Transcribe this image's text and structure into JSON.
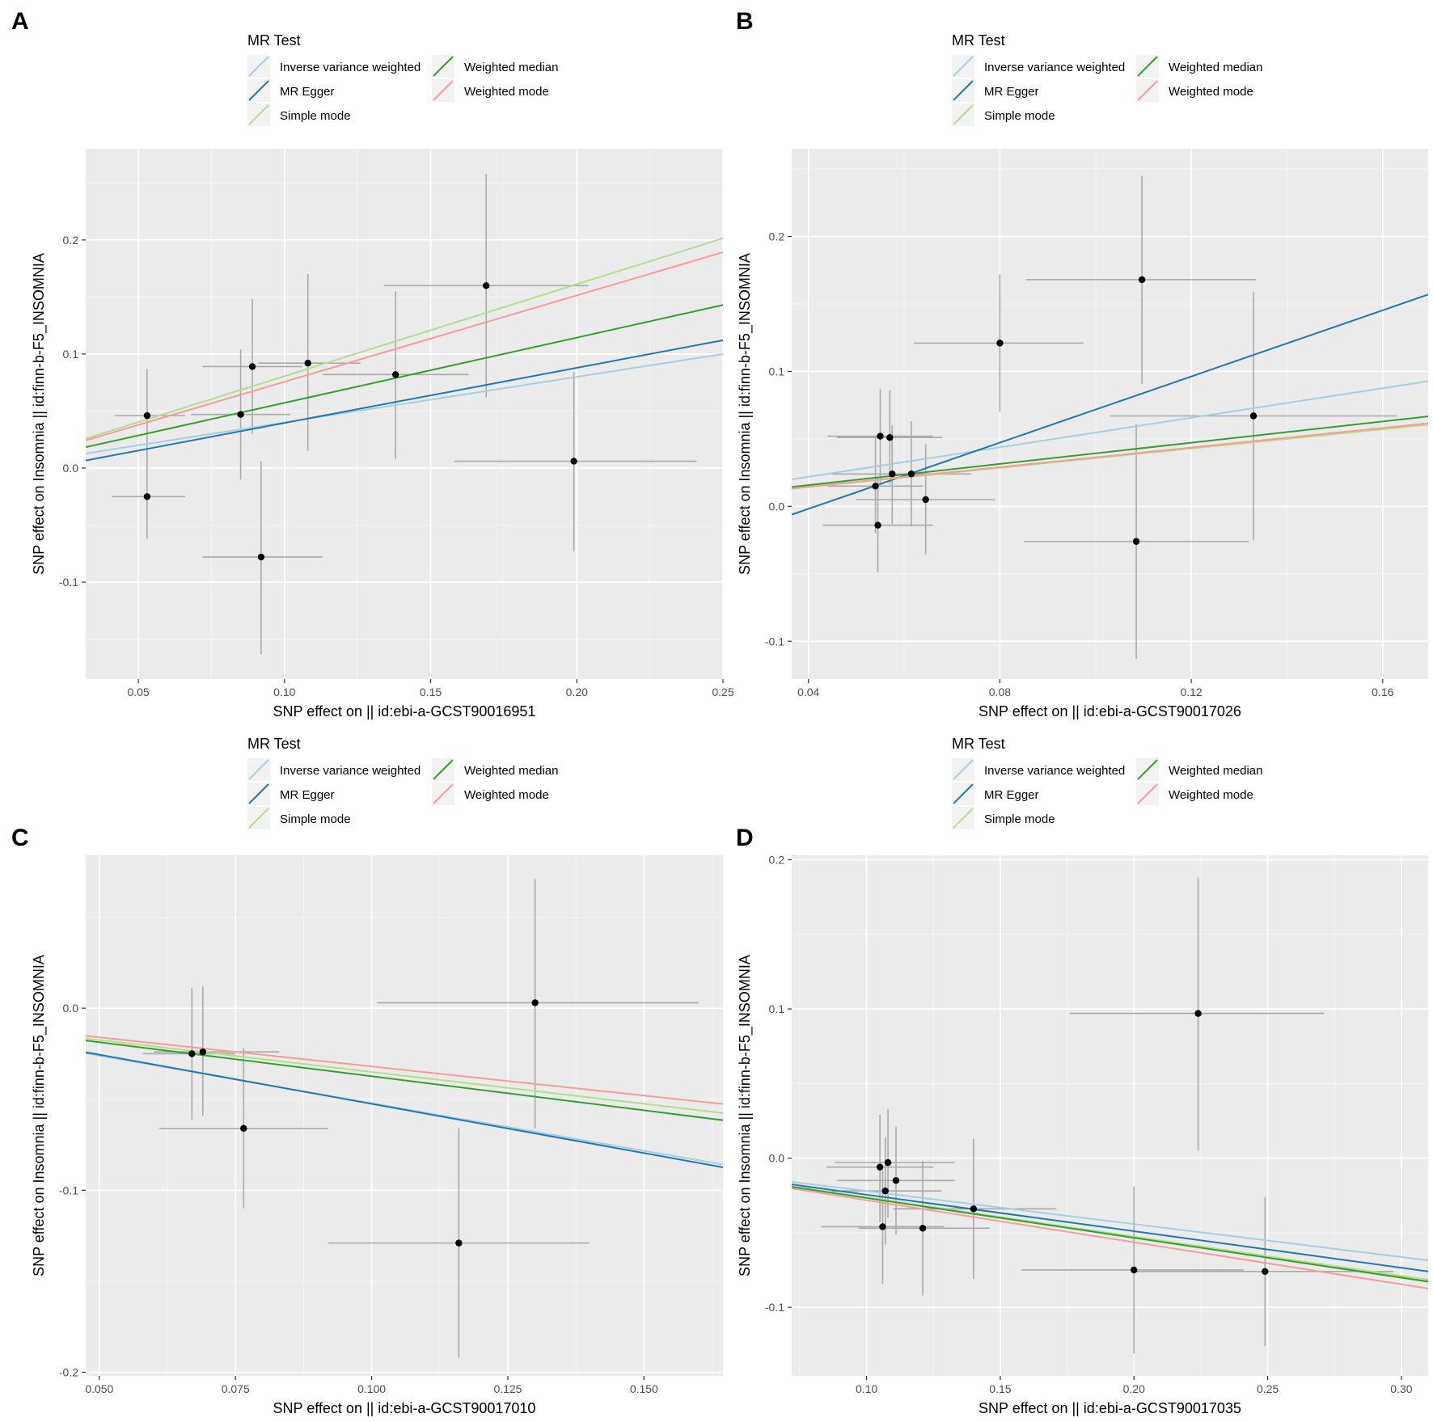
{
  "legend": {
    "title": "MR Test",
    "items": [
      {
        "label": "Inverse variance weighted",
        "color": "#a6cee3"
      },
      {
        "label": "MR Egger",
        "color": "#1f78b4"
      },
      {
        "label": "Simple mode",
        "color": "#b2df8a"
      },
      {
        "label": "Weighted median",
        "color": "#33a02c"
      },
      {
        "label": "Weighted mode",
        "color": "#fb9a99"
      }
    ]
  },
  "colors": {
    "panel_background": "#ebebeb",
    "grid_major": "#ffffff",
    "grid_minor": "#f4f4f4",
    "point": "#000000",
    "errorbar": "#aaaaaa",
    "axis_text": "#4d4d4d",
    "axis_title": "#000000"
  },
  "chart_data": [
    {
      "type": "scatter",
      "panel_label": "A",
      "title": "",
      "xlabel": "SNP effect on  || id:ebi-a-GCST90016951",
      "ylabel": "SNP effect on Insomnia || id:finn-b-F5_INSOMNIA",
      "xlim": [
        0.032,
        0.25
      ],
      "ylim": [
        -0.185,
        0.28
      ],
      "xticks": [
        0.05,
        0.1,
        0.15,
        0.2,
        0.25
      ],
      "xtick_labels": [
        "0.05",
        "0.10",
        "0.15",
        "0.20",
        "0.25"
      ],
      "yticks": [
        -0.1,
        0.0,
        0.1,
        0.2
      ],
      "ytick_labels": [
        "-0.1",
        "0.0",
        "0.1",
        "0.2"
      ],
      "points": [
        {
          "x": 0.053,
          "y": 0.046,
          "xlo": 0.042,
          "xhi": 0.066,
          "ylo": 0.006,
          "yhi": 0.087
        },
        {
          "x": 0.053,
          "y": -0.025,
          "xlo": 0.041,
          "xhi": 0.066,
          "ylo": -0.062,
          "yhi": 0.013
        },
        {
          "x": 0.085,
          "y": 0.047,
          "xlo": 0.068,
          "xhi": 0.102,
          "ylo": -0.01,
          "yhi": 0.104
        },
        {
          "x": 0.089,
          "y": 0.089,
          "xlo": 0.072,
          "xhi": 0.106,
          "ylo": 0.03,
          "yhi": 0.148
        },
        {
          "x": 0.092,
          "y": -0.078,
          "xlo": 0.072,
          "xhi": 0.113,
          "ylo": -0.163,
          "yhi": 0.006
        },
        {
          "x": 0.108,
          "y": 0.092,
          "xlo": 0.091,
          "xhi": 0.126,
          "ylo": 0.015,
          "yhi": 0.17
        },
        {
          "x": 0.138,
          "y": 0.082,
          "xlo": 0.113,
          "xhi": 0.163,
          "ylo": 0.008,
          "yhi": 0.155
        },
        {
          "x": 0.169,
          "y": 0.16,
          "xlo": 0.134,
          "xhi": 0.204,
          "ylo": 0.062,
          "yhi": 0.258
        },
        {
          "x": 0.199,
          "y": 0.006,
          "xlo": 0.158,
          "xhi": 0.241,
          "ylo": -0.073,
          "yhi": 0.084
        }
      ],
      "series": [
        {
          "name": "Inverse variance weighted",
          "intercept": 0.0,
          "slope": 0.4
        },
        {
          "name": "MR Egger",
          "intercept": -0.0088,
          "slope": 0.4836
        },
        {
          "name": "Simple mode",
          "intercept": 0.0,
          "slope": 0.806
        },
        {
          "name": "Weighted median",
          "intercept": 0.0,
          "slope": 0.572
        },
        {
          "name": "Weighted mode",
          "intercept": 0.0,
          "slope": 0.757
        }
      ]
    },
    {
      "type": "scatter",
      "panel_label": "B",
      "title": "",
      "xlabel": "SNP effect on  || id:ebi-a-GCST90017026",
      "ylabel": "SNP effect on Insomnia || id:finn-b-F5_INSOMNIA",
      "xlim": [
        0.0365,
        0.1695
      ],
      "ylim": [
        -0.128,
        0.265
      ],
      "xticks": [
        0.04,
        0.08,
        0.12,
        0.16
      ],
      "xtick_labels": [
        "0.04",
        "0.08",
        "0.12",
        "0.16"
      ],
      "yticks": [
        -0.1,
        0.0,
        0.1,
        0.2
      ],
      "ytick_labels": [
        "-0.1",
        "0.0",
        "0.1",
        "0.2"
      ],
      "points": [
        {
          "x": 0.054,
          "y": 0.015,
          "xlo": 0.044,
          "xhi": 0.064,
          "ylo": -0.02,
          "yhi": 0.052
        },
        {
          "x": 0.0545,
          "y": -0.014,
          "xlo": 0.043,
          "xhi": 0.066,
          "ylo": -0.049,
          "yhi": 0.021
        },
        {
          "x": 0.055,
          "y": 0.052,
          "xlo": 0.044,
          "xhi": 0.066,
          "ylo": 0.017,
          "yhi": 0.087
        },
        {
          "x": 0.057,
          "y": 0.051,
          "xlo": 0.046,
          "xhi": 0.068,
          "ylo": 0.016,
          "yhi": 0.086
        },
        {
          "x": 0.0575,
          "y": 0.024,
          "xlo": 0.045,
          "xhi": 0.07,
          "ylo": -0.013,
          "yhi": 0.06
        },
        {
          "x": 0.0615,
          "y": 0.024,
          "xlo": 0.049,
          "xhi": 0.074,
          "ylo": -0.015,
          "yhi": 0.063
        },
        {
          "x": 0.0645,
          "y": 0.005,
          "xlo": 0.05,
          "xhi": 0.079,
          "ylo": -0.036,
          "yhi": 0.046
        },
        {
          "x": 0.08,
          "y": 0.121,
          "xlo": 0.062,
          "xhi": 0.0975,
          "ylo": 0.07,
          "yhi": 0.172
        },
        {
          "x": 0.1085,
          "y": -0.026,
          "xlo": 0.085,
          "xhi": 0.132,
          "ylo": -0.113,
          "yhi": 0.061
        },
        {
          "x": 0.1097,
          "y": 0.168,
          "xlo": 0.0855,
          "xhi": 0.1335,
          "ylo": 0.091,
          "yhi": 0.245
        },
        {
          "x": 0.133,
          "y": 0.067,
          "xlo": 0.103,
          "xhi": 0.163,
          "ylo": -0.025,
          "yhi": 0.159
        }
      ],
      "series": [
        {
          "name": "Inverse variance weighted",
          "intercept": 0.0,
          "slope": 0.547
        },
        {
          "name": "MR Egger",
          "intercept": -0.0509,
          "slope": 1.2262
        },
        {
          "name": "Simple mode",
          "intercept": 0.0,
          "slope": 0.357
        },
        {
          "name": "Weighted median",
          "intercept": 0.0,
          "slope": 0.393
        },
        {
          "name": "Weighted mode",
          "intercept": 0.0,
          "slope": 0.363
        }
      ]
    },
    {
      "type": "scatter",
      "panel_label": "C",
      "title": "",
      "xlabel": "SNP effect on  || id:ebi-a-GCST90017010",
      "ylabel": "SNP effect on Insomnia || id:finn-b-F5_INSOMNIA",
      "xlim": [
        0.0475,
        0.1645
      ],
      "ylim": [
        -0.202,
        0.084
      ],
      "xticks": [
        0.05,
        0.075,
        0.1,
        0.125,
        0.15
      ],
      "xtick_labels": [
        "0.050",
        "0.075",
        "0.100",
        "0.125",
        "0.150"
      ],
      "yticks": [
        -0.2,
        -0.1,
        0.0
      ],
      "ytick_labels": [
        "-0.2",
        "-0.1",
        "0.0"
      ],
      "points": [
        {
          "x": 0.067,
          "y": -0.025,
          "xlo": 0.058,
          "xhi": 0.075,
          "ylo": -0.061,
          "yhi": 0.011
        },
        {
          "x": 0.069,
          "y": -0.024,
          "xlo": 0.06,
          "xhi": 0.083,
          "ylo": -0.059,
          "yhi": 0.012
        },
        {
          "x": 0.0765,
          "y": -0.066,
          "xlo": 0.061,
          "xhi": 0.092,
          "ylo": -0.11,
          "yhi": -0.022
        },
        {
          "x": 0.116,
          "y": -0.129,
          "xlo": 0.092,
          "xhi": 0.14,
          "ylo": -0.192,
          "yhi": -0.066
        },
        {
          "x": 0.13,
          "y": 0.003,
          "xlo": 0.101,
          "xhi": 0.16,
          "ylo": -0.066,
          "yhi": 0.071
        }
      ],
      "series": [
        {
          "name": "Inverse variance weighted",
          "intercept": 0.0,
          "slope": -0.522
        },
        {
          "name": "MR Egger",
          "intercept": 0.0015,
          "slope": -0.5405
        },
        {
          "name": "Simple mode",
          "intercept": 0.0,
          "slope": -0.35
        },
        {
          "name": "Weighted median",
          "intercept": 0.0,
          "slope": -0.374
        },
        {
          "name": "Weighted mode",
          "intercept": 0.0,
          "slope": -0.32
        }
      ]
    },
    {
      "type": "scatter",
      "panel_label": "D",
      "title": "",
      "xlabel": "SNP effect on  || id:ebi-a-GCST90017035",
      "ylabel": "SNP effect on Insomnia || id:finn-b-F5_INSOMNIA",
      "xlim": [
        0.072,
        0.31
      ],
      "ylim": [
        -0.146,
        0.203
      ],
      "xticks": [
        0.1,
        0.15,
        0.2,
        0.25,
        0.3
      ],
      "xtick_labels": [
        "0.10",
        "0.15",
        "0.20",
        "0.25",
        "0.30"
      ],
      "yticks": [
        -0.1,
        0.0,
        0.1,
        0.2
      ],
      "ytick_labels": [
        "-0.1",
        "0.0",
        "0.1",
        "0.2"
      ],
      "points": [
        {
          "x": 0.105,
          "y": -0.006,
          "xlo": 0.085,
          "xhi": 0.125,
          "ylo": -0.043,
          "yhi": 0.029
        },
        {
          "x": 0.107,
          "y": -0.022,
          "xlo": 0.087,
          "xhi": 0.128,
          "ylo": -0.058,
          "yhi": 0.014
        },
        {
          "x": 0.106,
          "y": -0.046,
          "xlo": 0.083,
          "xhi": 0.129,
          "ylo": -0.084,
          "yhi": -0.008
        },
        {
          "x": 0.108,
          "y": -0.003,
          "xlo": 0.088,
          "xhi": 0.133,
          "ylo": -0.04,
          "yhi": 0.033
        },
        {
          "x": 0.111,
          "y": -0.015,
          "xlo": 0.089,
          "xhi": 0.133,
          "ylo": -0.051,
          "yhi": 0.021
        },
        {
          "x": 0.121,
          "y": -0.047,
          "xlo": 0.097,
          "xhi": 0.146,
          "ylo": -0.092,
          "yhi": -0.002
        },
        {
          "x": 0.14,
          "y": -0.034,
          "xlo": 0.11,
          "xhi": 0.171,
          "ylo": -0.081,
          "yhi": 0.013
        },
        {
          "x": 0.2,
          "y": -0.075,
          "xlo": 0.158,
          "xhi": 0.241,
          "ylo": -0.131,
          "yhi": -0.019
        },
        {
          "x": 0.224,
          "y": 0.097,
          "xlo": 0.176,
          "xhi": 0.271,
          "ylo": 0.005,
          "yhi": 0.188
        },
        {
          "x": 0.249,
          "y": -0.076,
          "xlo": 0.201,
          "xhi": 0.297,
          "ylo": -0.126,
          "yhi": -0.026
        }
      ],
      "series": [
        {
          "name": "Inverse variance weighted",
          "intercept": 0.0,
          "slope": -0.221
        },
        {
          "name": "MR Egger",
          "intercept": 0.0,
          "slope": -0.245
        },
        {
          "name": "Simple mode",
          "intercept": 0.0,
          "slope": -0.263
        },
        {
          "name": "Weighted median",
          "intercept": 0.0,
          "slope": -0.267
        },
        {
          "name": "Weighted mode",
          "intercept": 0.0,
          "slope": -0.282
        }
      ]
    }
  ]
}
